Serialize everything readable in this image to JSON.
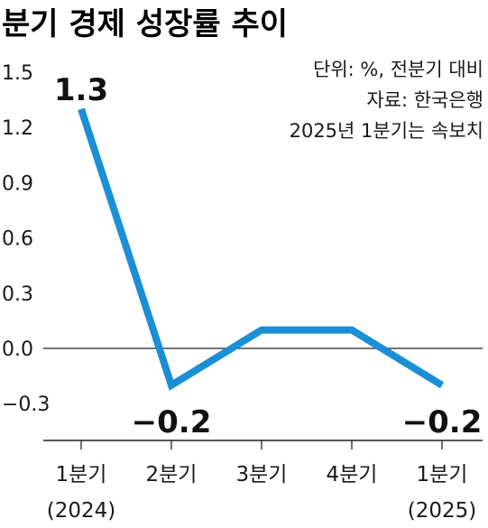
{
  "title": "분기 경제 성장률 추이",
  "notes": [
    "단위: %, 전분기 대비",
    "자료: 한국은행",
    "2025년 1분기는 속보치"
  ],
  "colors": {
    "line": "#1a8fd6",
    "axis": "#222222",
    "text": "#1a1a1a"
  },
  "chart_data": {
    "type": "line",
    "title": "분기 경제 성장률 추이",
    "xlabel": "",
    "ylabel": "",
    "categories": [
      "1분기 (2024)",
      "2분기",
      "3분기",
      "4분기",
      "1분기 (2025)"
    ],
    "category_lines": [
      [
        "1분기",
        "(2024)"
      ],
      [
        "2분기"
      ],
      [
        "3분기"
      ],
      [
        "4분기"
      ],
      [
        "1분기",
        "(2025)"
      ]
    ],
    "series": [
      {
        "values": [
          1.3,
          -0.2,
          0.1,
          0.1,
          -0.2
        ]
      }
    ],
    "data_labels": [
      {
        "index": 0,
        "text": "1.3"
      },
      {
        "index": 1,
        "text": "−0.2"
      },
      {
        "index": 4,
        "text": "−0.2"
      }
    ],
    "yticks": [
      1.5,
      1.2,
      0.9,
      0.6,
      0.3,
      0.0,
      -0.3
    ],
    "ytick_labels": [
      "1.5",
      "1.2",
      "0.9",
      "0.6",
      "0.3",
      "0.0",
      "−0.3"
    ],
    "ylim": [
      -0.5,
      1.5
    ],
    "zero_line": true,
    "grid": false,
    "legend": "none"
  }
}
